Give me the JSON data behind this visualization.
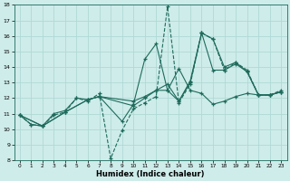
{
  "xlabel": "Humidex (Indice chaleur)",
  "xlim": [
    -0.5,
    23.5
  ],
  "ylim": [
    8,
    18
  ],
  "xticks": [
    0,
    1,
    2,
    3,
    4,
    5,
    6,
    7,
    8,
    9,
    10,
    11,
    12,
    13,
    14,
    15,
    16,
    17,
    18,
    19,
    20,
    21,
    22,
    23
  ],
  "yticks": [
    8,
    9,
    10,
    11,
    12,
    13,
    14,
    15,
    16,
    17,
    18
  ],
  "bg_color": "#ceecea",
  "line_color": "#1e6b5c",
  "grid_color": "#afd9d5",
  "lines": [
    {
      "x": [
        0,
        1,
        2,
        3,
        4,
        5,
        6,
        7,
        8,
        9,
        10,
        11,
        12,
        13,
        14,
        15,
        16,
        17,
        18,
        19,
        20,
        21,
        22,
        23
      ],
      "y": [
        10.9,
        10.3,
        10.2,
        10.9,
        11.1,
        12.0,
        11.8,
        12.3,
        8.1,
        9.9,
        11.3,
        11.7,
        12.1,
        17.9,
        11.7,
        12.9,
        16.2,
        15.8,
        13.8,
        14.3,
        13.8,
        12.2,
        12.2,
        12.5
      ],
      "linestyle": "--"
    },
    {
      "x": [
        0,
        1,
        2,
        3,
        4,
        5,
        6,
        7,
        10,
        11,
        12,
        13,
        14,
        15,
        16,
        17,
        18,
        19,
        20,
        21,
        22,
        23
      ],
      "y": [
        10.9,
        10.3,
        10.2,
        11.0,
        11.2,
        12.0,
        11.9,
        12.1,
        11.5,
        12.0,
        12.5,
        12.5,
        11.8,
        13.0,
        16.2,
        13.8,
        13.8,
        14.2,
        13.7,
        12.2,
        12.2,
        12.4
      ],
      "linestyle": "-"
    },
    {
      "x": [
        0,
        2,
        4,
        6,
        7,
        9,
        10,
        11,
        12,
        13,
        14,
        15,
        16,
        17,
        18,
        19,
        20,
        21,
        22,
        23
      ],
      "y": [
        10.9,
        10.2,
        11.1,
        11.9,
        12.1,
        10.5,
        11.6,
        14.5,
        15.5,
        12.5,
        13.9,
        12.5,
        12.3,
        11.6,
        11.8,
        12.1,
        12.3,
        12.2,
        12.2,
        12.4
      ],
      "linestyle": "-"
    },
    {
      "x": [
        0,
        2,
        4,
        6,
        7,
        10,
        11,
        12,
        13,
        14,
        15,
        16,
        17,
        18,
        19,
        20,
        21,
        22,
        23
      ],
      "y": [
        10.9,
        10.2,
        11.1,
        11.9,
        12.1,
        11.8,
        12.1,
        12.5,
        12.9,
        11.8,
        13.1,
        16.2,
        15.8,
        14.0,
        14.3,
        13.7,
        12.2,
        12.2,
        12.4
      ],
      "linestyle": "-"
    }
  ]
}
